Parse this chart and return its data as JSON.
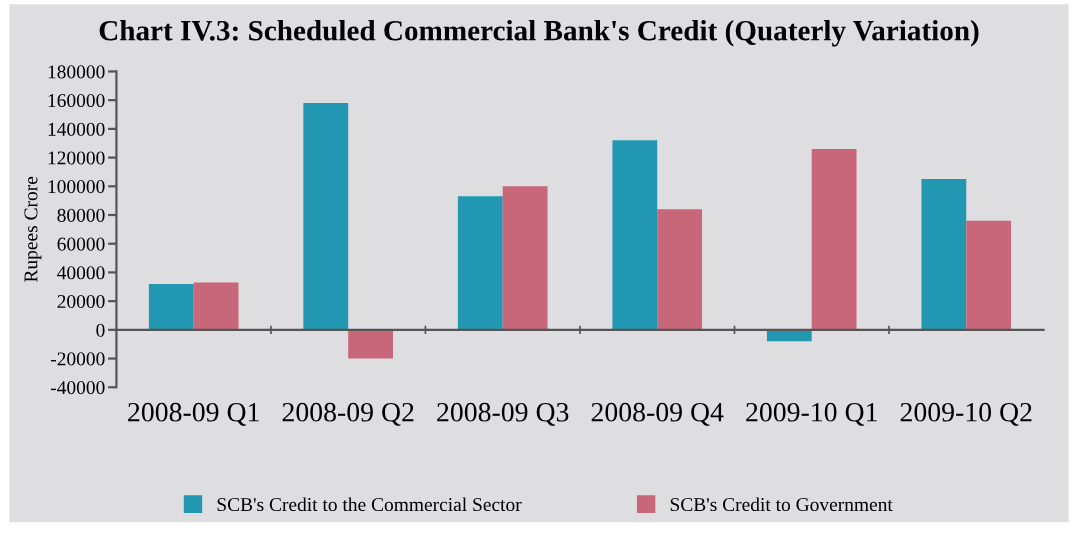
{
  "chart_data": {
    "type": "bar",
    "title": "Chart IV.3: Scheduled Commercial Bank's Credit (Quaterly Variation)",
    "ylabel": "Rupees Crore",
    "categories": [
      "2008-09 Q1",
      "2008-09 Q2",
      "2008-09 Q3",
      "2008-09 Q4",
      "2009-10 Q1",
      "2009-10 Q2"
    ],
    "series": [
      {
        "name": "SCB's Credit to the Commercial Sector",
        "color": "#2197b1",
        "values": [
          32000,
          158000,
          93000,
          132000,
          -8000,
          105000
        ]
      },
      {
        "name": "SCB's Credit to Government",
        "color": "#c9677a",
        "values": [
          33000,
          -20000,
          100000,
          84000,
          126000,
          76000
        ]
      }
    ],
    "ylim": [
      -40000,
      180000
    ],
    "yticks": [
      -40000,
      -20000,
      0,
      20000,
      40000,
      60000,
      80000,
      100000,
      120000,
      140000,
      160000,
      180000
    ],
    "legend": "bottom"
  }
}
